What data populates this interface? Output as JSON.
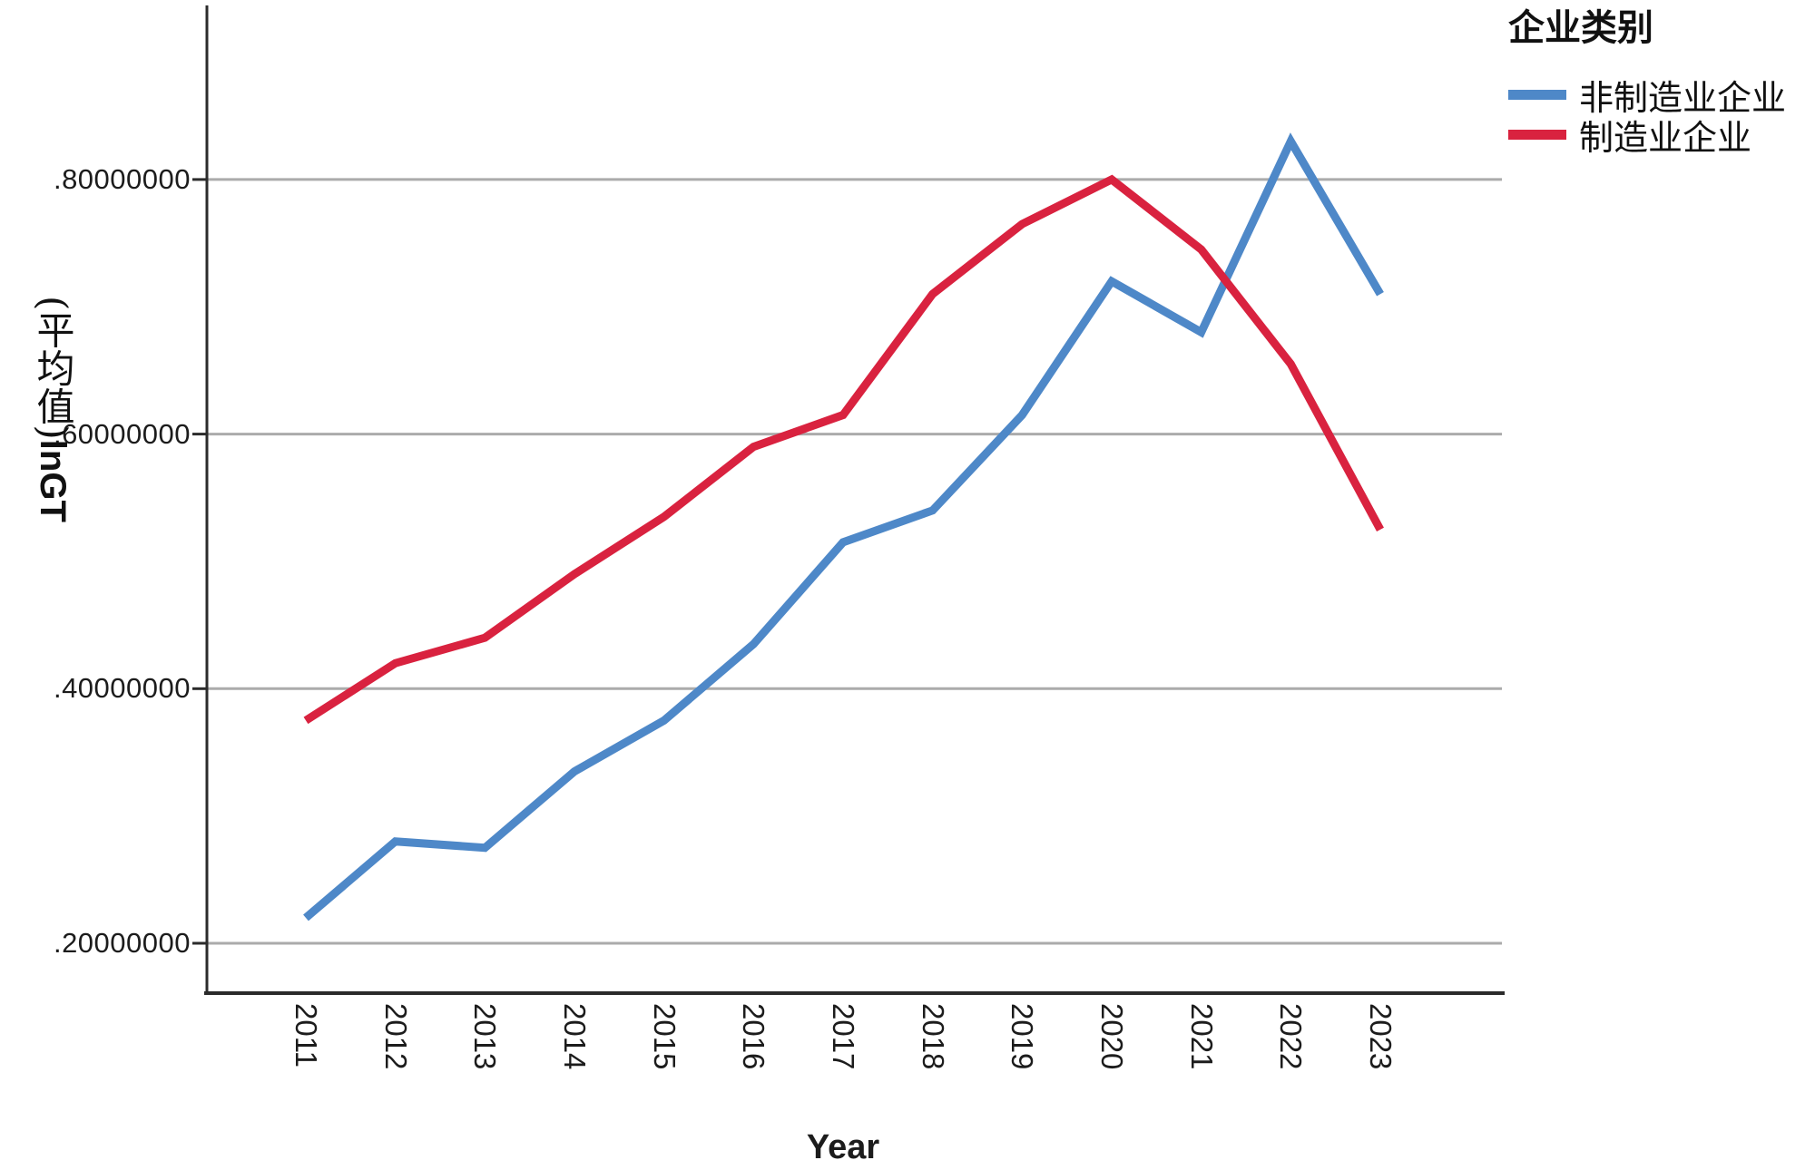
{
  "chart_data": {
    "type": "line",
    "title": "",
    "xlabel": "Year",
    "ylabel": "(平均值)lnGT",
    "ylabel_prefix": "(平均值)",
    "ylabel_suffix": "lnGT",
    "legend_title": "企业类别",
    "legend_position": "top-right",
    "grid": true,
    "categories": [
      "2011",
      "2012",
      "2013",
      "2014",
      "2015",
      "2016",
      "2017",
      "2018",
      "2019",
      "2020",
      "2021",
      "2022",
      "2023"
    ],
    "y_tick_labels": [
      ".20000000",
      ".40000000",
      ".60000000",
      ".80000000"
    ],
    "y_tick_values": [
      0.2,
      0.4,
      0.6,
      0.8
    ],
    "ylim": [
      0.161,
      0.935
    ],
    "series": [
      {
        "name": "非制造业企业",
        "color": "#4E88C8",
        "values": [
          0.22,
          0.28,
          0.275,
          0.335,
          0.375,
          0.435,
          0.515,
          0.54,
          0.615,
          0.72,
          0.68,
          0.83,
          0.71
        ]
      },
      {
        "name": "制造业企业",
        "color": "#D9223F",
        "values": [
          0.375,
          0.42,
          0.44,
          0.49,
          0.535,
          0.59,
          0.615,
          0.71,
          0.765,
          0.8,
          0.745,
          0.655,
          0.525
        ]
      }
    ],
    "colors": {
      "gridline": "#ABABAB",
      "axis": "#2B2B2B",
      "text": "#1C1C1C"
    }
  }
}
